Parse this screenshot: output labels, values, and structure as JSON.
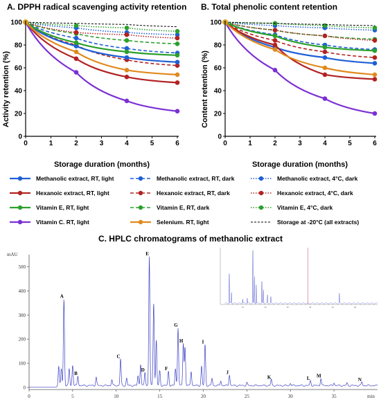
{
  "chart_data": [
    {
      "type": "line",
      "title": "A. DPPH radical scavenging activity retention",
      "xlabel": "Storage duration (months)",
      "ylabel": "Activity retention (%)",
      "xlim": [
        0,
        6
      ],
      "ylim": [
        0,
        100
      ],
      "xticks": [
        0,
        1,
        2,
        3,
        4,
        5,
        6
      ],
      "yticks": [
        0,
        20,
        40,
        60,
        80,
        100
      ],
      "grid": false,
      "series": [
        {
          "name": "Methanolic extract, RT, light",
          "color": "#1f5fd6",
          "dash": "solid",
          "x": [
            0,
            2,
            4,
            6
          ],
          "y": [
            100,
            79,
            69,
            65
          ]
        },
        {
          "name": "Hexanoic extract, RT, light",
          "color": "#b22222",
          "dash": "solid",
          "x": [
            0,
            2,
            4,
            6
          ],
          "y": [
            100,
            68,
            52,
            47
          ]
        },
        {
          "name": "Vitamin E, RT, light",
          "color": "#2ca02c",
          "dash": "solid",
          "x": [
            0,
            2,
            4,
            6
          ],
          "y": [
            100,
            82,
            74,
            71
          ]
        },
        {
          "name": "Vitamin C. RT, light",
          "color": "#7b2fd4",
          "dash": "solid",
          "x": [
            0,
            2,
            4,
            6
          ],
          "y": [
            100,
            56,
            31,
            22
          ]
        },
        {
          "name": "Selenium. RT, light",
          "color": "#e08a1e",
          "dash": "solid",
          "x": [
            0,
            2,
            4,
            6
          ],
          "y": [
            100,
            74,
            58,
            54
          ]
        },
        {
          "name": "Methanolic extract, RT, dark",
          "color": "#1f5fd6",
          "dash": "dashed",
          "x": [
            0,
            2,
            4,
            6
          ],
          "y": [
            100,
            86,
            77,
            73
          ]
        },
        {
          "name": "Hexanoic extract, RT, dark",
          "color": "#b22222",
          "dash": "dashed",
          "x": [
            0,
            2,
            4,
            6
          ],
          "y": [
            100,
            80,
            67,
            62
          ]
        },
        {
          "name": "Vitamin E, RT, dark",
          "color": "#2ca02c",
          "dash": "dashed",
          "x": [
            0,
            2,
            4,
            6
          ],
          "y": [
            100,
            90,
            84,
            81
          ]
        },
        {
          "name": "Methanolic extract, 4°C, dark",
          "color": "#1f5fd6",
          "dash": "dotted",
          "x": [
            0,
            2,
            4,
            6
          ],
          "y": [
            100,
            95,
            91,
            89
          ]
        },
        {
          "name": "Hexanoic extract, 4°C, dark",
          "color": "#b22222",
          "dash": "dotted",
          "x": [
            0,
            2,
            4,
            6
          ],
          "y": [
            100,
            91,
            89,
            86
          ]
        },
        {
          "name": "Vitamin E, 4°C, dark",
          "color": "#2ca02c",
          "dash": "dotted",
          "x": [
            0,
            2,
            4,
            6
          ],
          "y": [
            100,
            97,
            95,
            92
          ]
        },
        {
          "name": "Storage at -20°C (all extracts)",
          "color": "#000000",
          "dash": "dashed-fine",
          "x": [
            0,
            2,
            4,
            6
          ],
          "y": [
            100,
            99,
            98,
            96
          ]
        }
      ]
    },
    {
      "type": "line",
      "title": "B. Total phenolic content retention",
      "xlabel": "Storage duration (months)",
      "ylabel": "Content retention (%)",
      "xlim": [
        0,
        6
      ],
      "ylim": [
        0,
        100
      ],
      "xticks": [
        0,
        1,
        2,
        3,
        4,
        5,
        6
      ],
      "yticks": [
        0,
        20,
        40,
        60,
        80,
        100
      ],
      "grid": false,
      "series": [
        {
          "name": "Methanolic extract, RT, light",
          "color": "#1f5fd6",
          "dash": "solid",
          "x": [
            0,
            2,
            4,
            6
          ],
          "y": [
            100,
            78,
            69,
            64
          ]
        },
        {
          "name": "Hexanoic extract, RT, light",
          "color": "#b22222",
          "dash": "solid",
          "x": [
            0,
            2,
            4,
            6
          ],
          "y": [
            100,
            80,
            54,
            50
          ]
        },
        {
          "name": "Vitamin E, RT, light",
          "color": "#2ca02c",
          "dash": "solid",
          "x": [
            0,
            2,
            4,
            6
          ],
          "y": [
            100,
            88,
            78,
            75
          ]
        },
        {
          "name": "Vitamin C. RT, light",
          "color": "#7b2fd4",
          "dash": "solid",
          "x": [
            0,
            2,
            4,
            6
          ],
          "y": [
            100,
            58,
            33,
            20
          ]
        },
        {
          "name": "Selenium. RT, light",
          "color": "#e08a1e",
          "dash": "solid",
          "x": [
            0,
            2,
            4,
            6
          ],
          "y": [
            100,
            76,
            60,
            54
          ]
        },
        {
          "name": "Methanolic extract, RT, dark",
          "color": "#1f5fd6",
          "dash": "dashed",
          "x": [
            0,
            2,
            4,
            6
          ],
          "y": [
            100,
            89,
            80,
            76
          ]
        },
        {
          "name": "Hexanoic extract, RT, dark",
          "color": "#b22222",
          "dash": "dashed",
          "x": [
            0,
            2,
            4,
            6
          ],
          "y": [
            100,
            84,
            74,
            69
          ]
        },
        {
          "name": "Vitamin E, RT, dark",
          "color": "#2ca02c",
          "dash": "dashed",
          "x": [
            0,
            2,
            4,
            6
          ],
          "y": [
            100,
            93,
            88,
            85
          ]
        },
        {
          "name": "Methanolic extract, 4°C, dark",
          "color": "#1f5fd6",
          "dash": "dotted",
          "x": [
            0,
            2,
            4,
            6
          ],
          "y": [
            100,
            97,
            95,
            93
          ]
        },
        {
          "name": "Hexanoic extract, 4°C, dark",
          "color": "#b22222",
          "dash": "dotted",
          "x": [
            0,
            2,
            4,
            6
          ],
          "y": [
            100,
            93,
            88,
            84
          ]
        },
        {
          "name": "Vitamin E, 4°C, dark",
          "color": "#2ca02c",
          "dash": "dotted",
          "x": [
            0,
            2,
            4,
            6
          ],
          "y": [
            100,
            99,
            97,
            95
          ]
        },
        {
          "name": "Storage at -20°C (all extracts)",
          "color": "#000000",
          "dash": "dashed-fine",
          "x": [
            0,
            2,
            4,
            6
          ],
          "y": [
            100,
            99,
            98,
            97
          ]
        }
      ]
    },
    {
      "type": "line",
      "title": "C. HPLC chromatograms of methanolic extract",
      "ylabel": "mAU",
      "xlabel": "min",
      "xlim": [
        0,
        40
      ],
      "ylim": [
        0,
        550
      ],
      "xticks": [
        0,
        5,
        10,
        15,
        20,
        25,
        30,
        35
      ],
      "yticks": [
        0,
        100,
        200,
        300,
        400,
        500
      ],
      "color": "#3b3fc4",
      "peaks": [
        {
          "label": "A",
          "x": 4.0,
          "y": 360
        },
        {
          "label": "B",
          "x": 5.6,
          "y": 40
        },
        {
          "label": "C",
          "x": 10.5,
          "y": 110
        },
        {
          "label": "D",
          "x": 13.3,
          "y": 55
        },
        {
          "label": "E",
          "x": 13.8,
          "y": 535
        },
        {
          "label": "F",
          "x": 16.0,
          "y": 60
        },
        {
          "label": "G",
          "x": 17.1,
          "y": 240
        },
        {
          "label": "H",
          "x": 17.7,
          "y": 175
        },
        {
          "label": "I",
          "x": 20.2,
          "y": 170
        },
        {
          "label": "J",
          "x": 23.0,
          "y": 45
        },
        {
          "label": "K",
          "x": 27.8,
          "y": 25
        },
        {
          "label": "L",
          "x": 32.3,
          "y": 20
        },
        {
          "label": "M",
          "x": 33.5,
          "y": 30
        },
        {
          "label": "N",
          "x": 38.2,
          "y": 15
        }
      ],
      "inset": {
        "color": "#5a5fd0",
        "marker_color": "#d98a9a",
        "xticks": [
          10,
          20,
          30,
          40,
          50,
          60
        ],
        "xlim": [
          0,
          70
        ]
      }
    }
  ],
  "legend": [
    {
      "label": "Methanolic extract, RT, light",
      "color": "#1f5fd6",
      "dash": "solid"
    },
    {
      "label": "Methanolic extract, RT, dark",
      "color": "#1f5fd6",
      "dash": "dashed"
    },
    {
      "label": "Methanolic extract, 4°C, dark",
      "color": "#1f5fd6",
      "dash": "dotted"
    },
    {
      "label": "Hexanoic extract, RT, light",
      "color": "#b22222",
      "dash": "solid"
    },
    {
      "label": "Hexanoic extract, RT, dark",
      "color": "#b22222",
      "dash": "dashed"
    },
    {
      "label": "Hexanoic extract, 4°C, dark",
      "color": "#b22222",
      "dash": "dotted"
    },
    {
      "label": "Vitamin E, RT, light",
      "color": "#2ca02c",
      "dash": "solid"
    },
    {
      "label": "Vitamin E, RT, dark",
      "color": "#2ca02c",
      "dash": "dashed"
    },
    {
      "label": "Vitamin E, 4°C, dark",
      "color": "#2ca02c",
      "dash": "dotted"
    },
    {
      "label": "Vitamin C. RT, light",
      "color": "#7b2fd4",
      "dash": "solid"
    },
    {
      "label": "Selenium. RT, light",
      "color": "#e08a1e",
      "dash": "solid"
    },
    {
      "label": "Storage at -20°C (all extracts)",
      "color": "#000000",
      "dash": "dashed-fine",
      "marker": false
    }
  ]
}
